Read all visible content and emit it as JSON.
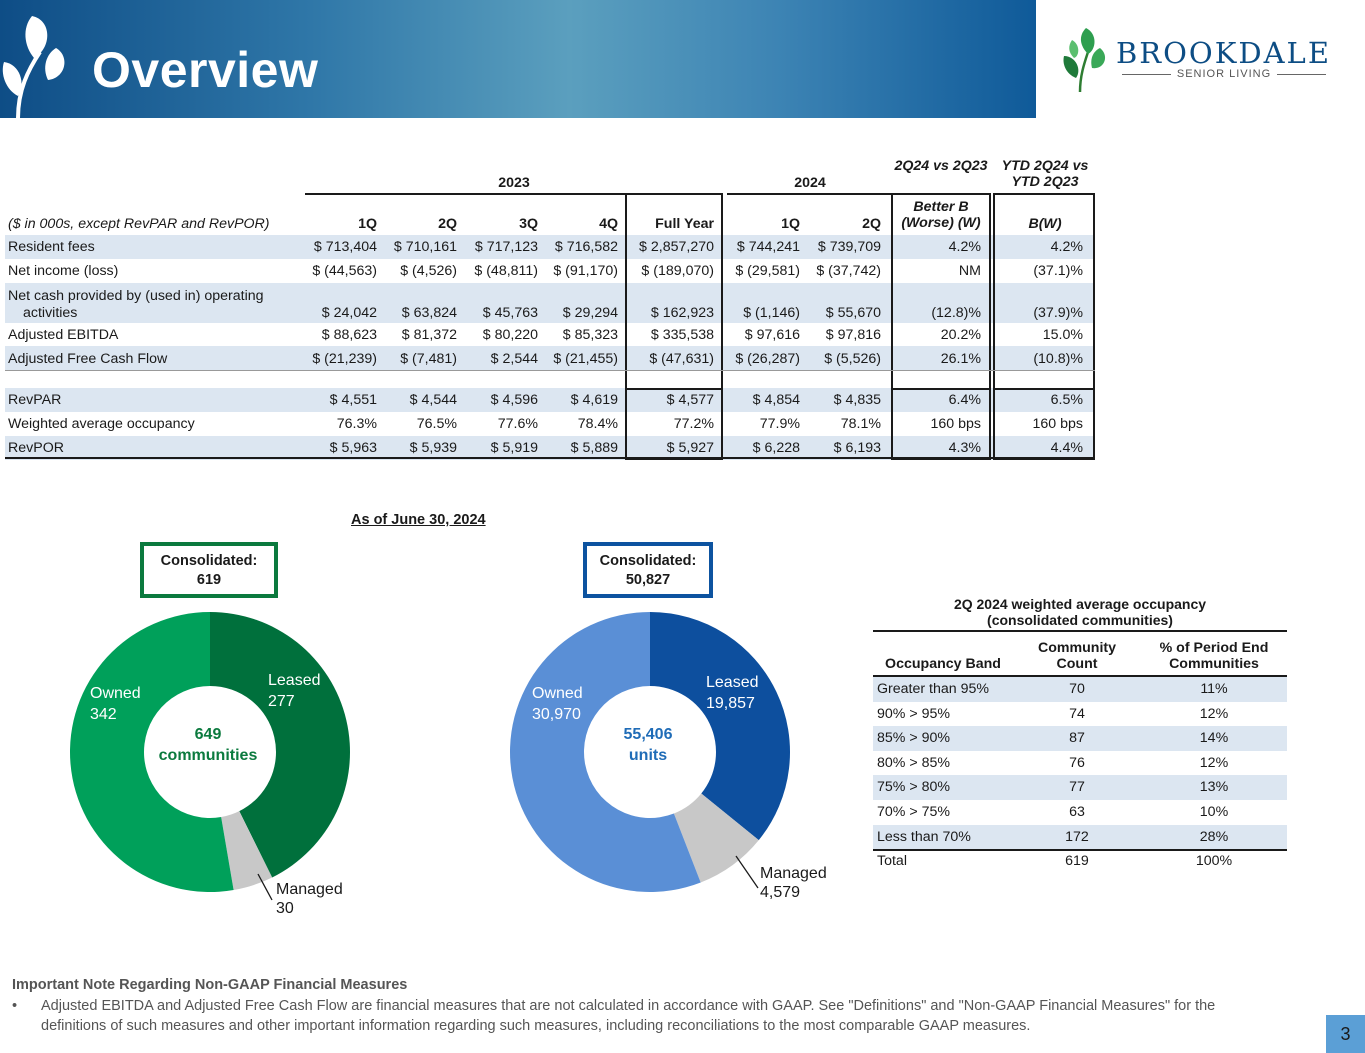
{
  "header": {
    "title": "Overview"
  },
  "logo": {
    "name": "Brookdale",
    "tagline": "SENIOR LIVING"
  },
  "financials": {
    "year_2023": "2023",
    "year_2024": "2024",
    "cmp_q_header": "2Q24 vs 2Q23",
    "cmp_ytd_header": "YTD 2Q24 vs YTD 2Q23",
    "units_label": "($ in 000s, except RevPAR and RevPOR)",
    "periods": [
      "1Q",
      "2Q",
      "3Q",
      "4Q",
      "Full Year",
      "1Q",
      "2Q"
    ],
    "cmp_q_sub": "Better B (Worse) (W)",
    "cmp_ytd_sub": "B(W)",
    "rows": [
      {
        "label": "Resident fees",
        "values": [
          "$ 713,404",
          "$ 710,161",
          "$ 717,123",
          "$ 716,582",
          "$ 2,857,270",
          "$ 744,241",
          "$ 739,709"
        ],
        "q": "4.2%",
        "ytd": "4.2%"
      },
      {
        "label": "Net income (loss)",
        "values": [
          "$ (44,563)",
          "$ (4,526)",
          "$ (48,811)",
          "$ (91,170)",
          "$ (189,070)",
          "$ (29,581)",
          "$ (37,742)"
        ],
        "q": "NM",
        "ytd": "(37.1)%"
      },
      {
        "label": "Net cash provided by (used in) operating",
        "label2": "activities",
        "values": [
          "$ 24,042",
          "$ 63,824",
          "$ 45,763",
          "$ 29,294",
          "$ 162,923",
          "$ (1,146)",
          "$ 55,670"
        ],
        "q": "(12.8)%",
        "ytd": "(37.9)%"
      },
      {
        "label": "Adjusted EBITDA",
        "values": [
          "$ 88,623",
          "$ 81,372",
          "$ 80,220",
          "$ 85,323",
          "$ 335,538",
          "$ 97,616",
          "$ 97,816"
        ],
        "q": "20.2%",
        "ytd": "15.0%"
      },
      {
        "label": "Adjusted Free Cash Flow",
        "values": [
          "$ (21,239)",
          "$ (7,481)",
          "$ 2,544",
          "$ (21,455)",
          "$ (47,631)",
          "$ (26,287)",
          "$ (5,526)"
        ],
        "q": "26.1%",
        "ytd": "(10.8)%"
      },
      {
        "label": "RevPAR",
        "values": [
          "$ 4,551",
          "$ 4,544",
          "$ 4,596",
          "$ 4,619",
          "$ 4,577",
          "$ 4,854",
          "$ 4,835"
        ],
        "q": "6.4%",
        "ytd": "6.5%"
      },
      {
        "label": "Weighted average occupancy",
        "values": [
          "76.3%",
          "76.5%",
          "77.6%",
          "78.4%",
          "77.2%",
          "77.9%",
          "78.1%"
        ],
        "q": "160 bps",
        "ytd": "160 bps"
      },
      {
        "label": "RevPOR",
        "values": [
          "$ 5,963",
          "$ 5,939",
          "$ 5,919",
          "$ 5,889",
          "$ 5,927",
          "$ 6,228",
          "$ 6,193"
        ],
        "q": "4.3%",
        "ytd": "4.4%"
      }
    ]
  },
  "as_of": "As of June 30, 2024",
  "communities": {
    "callout_label": "Consolidated:",
    "callout_value": "619",
    "center_value": "649",
    "center_label": "communities",
    "segments": [
      {
        "name": "Leased",
        "value": 277,
        "display": "277",
        "color": "#00703c"
      },
      {
        "name": "Managed",
        "value": 30,
        "display": "30",
        "color": "#c8c8c8"
      },
      {
        "name": "Owned",
        "value": 342,
        "display": "342",
        "color": "#00a05a"
      }
    ]
  },
  "units": {
    "callout_label": "Consolidated:",
    "callout_value": "50,827",
    "center_value": "55,406",
    "center_label": "units",
    "segments": [
      {
        "name": "Leased",
        "value": 19857,
        "display": "19,857",
        "color": "#0d4f9e"
      },
      {
        "name": "Managed",
        "value": 4579,
        "display": "4,579",
        "color": "#c8c8c8"
      },
      {
        "name": "Owned",
        "value": 30970,
        "display": "30,970",
        "color": "#5a8fd6"
      }
    ]
  },
  "occupancy": {
    "title1": "2Q 2024 weighted average occupancy",
    "title2": "(consolidated communities)",
    "col1": "Occupancy Band",
    "col2a": "Community",
    "col2b": "Count",
    "col3a": "% of Period End",
    "col3b": "Communities",
    "rows": [
      {
        "band": "Greater than 95%",
        "count": "70",
        "pct": "11%"
      },
      {
        "band": "90% > 95%",
        "count": "74",
        "pct": "12%"
      },
      {
        "band": "85% > 90%",
        "count": "87",
        "pct": "14%"
      },
      {
        "band": "80% > 85%",
        "count": "76",
        "pct": "12%"
      },
      {
        "band": "75% > 80%",
        "count": "77",
        "pct": "13%"
      },
      {
        "band": "70% > 75%",
        "count": "63",
        "pct": "10%"
      },
      {
        "band": "Less than 70%",
        "count": "172",
        "pct": "28%"
      },
      {
        "band": "Total",
        "count": "619",
        "pct": "100%"
      }
    ]
  },
  "note": {
    "title": "Important Note Regarding Non-GAAP Financial Measures",
    "bullet": "•",
    "text": "Adjusted EBITDA and Adjusted Free Cash Flow are financial measures that are not calculated in accordance with GAAP. See \"Definitions\" and \"Non-GAAP Financial Measures\" for the definitions of such measures and other important information regarding such measures, including reconciliations to the most comparable GAAP measures."
  },
  "page_number": "3"
}
